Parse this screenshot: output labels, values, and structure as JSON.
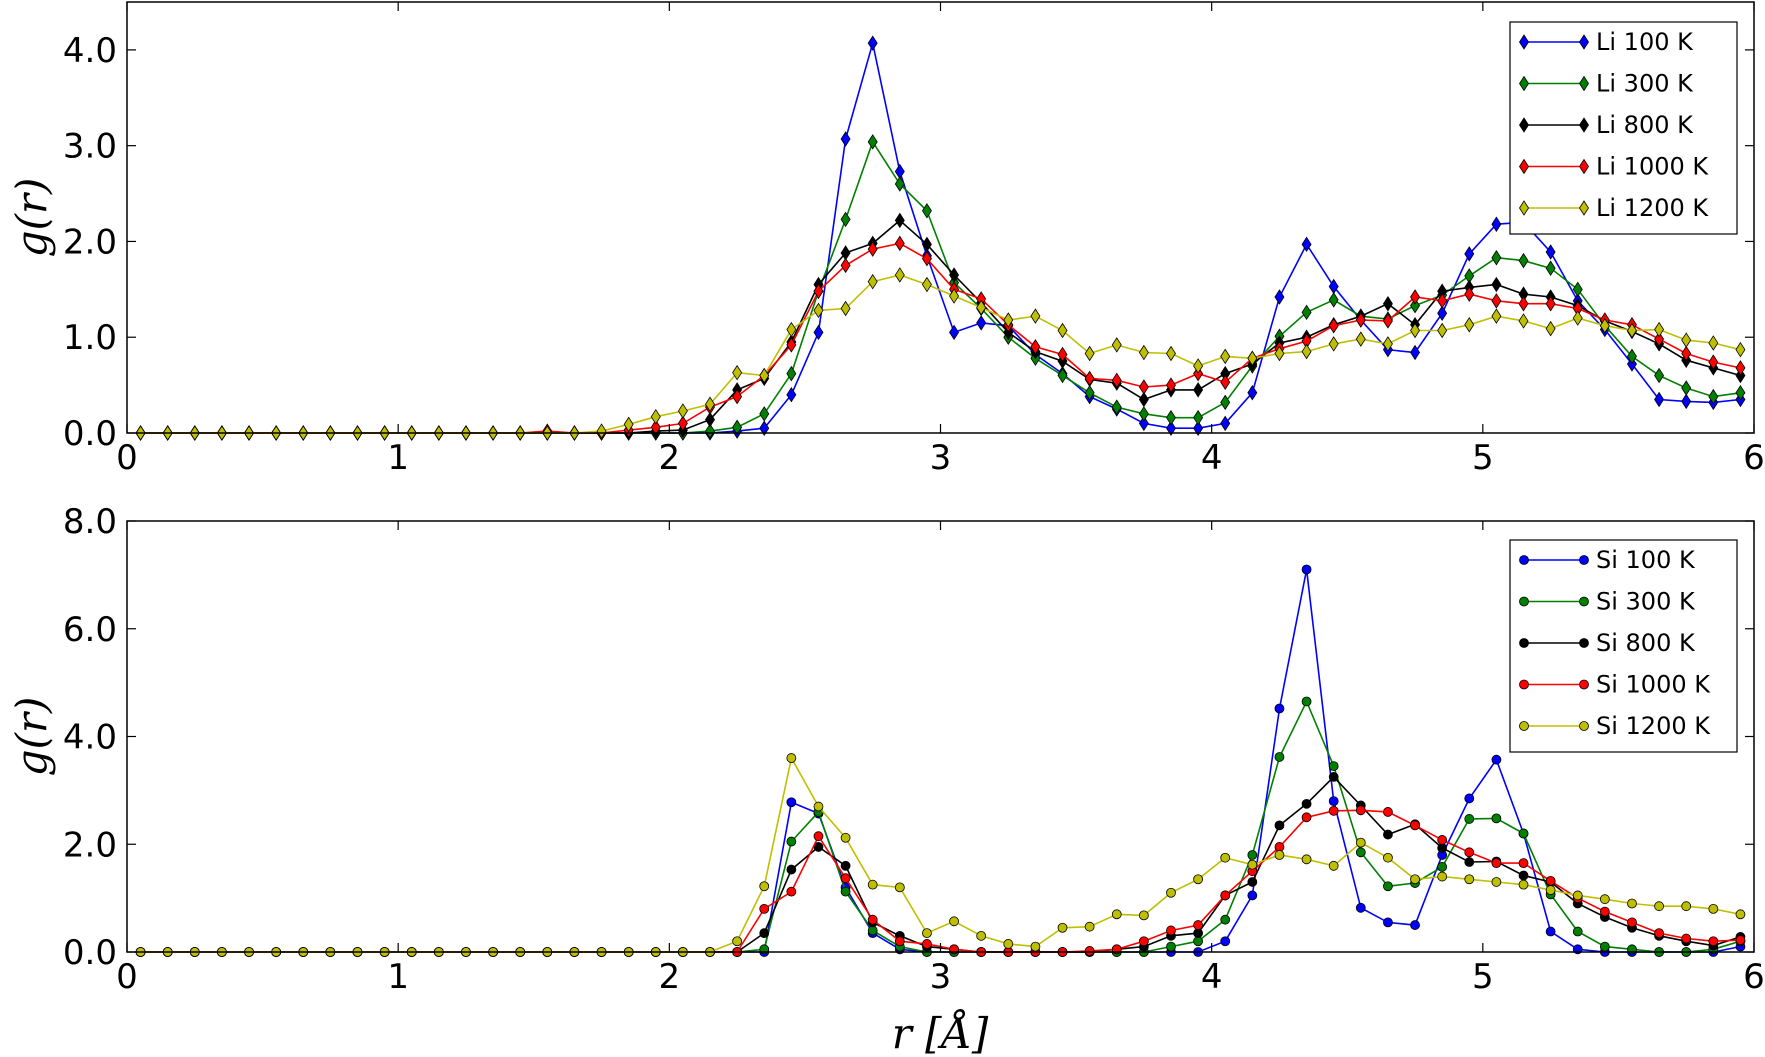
{
  "chart_data": [
    {
      "type": "line",
      "title": "",
      "xlabel": "r [Å]",
      "ylabel": "g(r)",
      "xlim": [
        0,
        6
      ],
      "ylim": [
        0,
        4.5
      ],
      "xticks": [
        "0",
        "1",
        "2",
        "3",
        "4",
        "5",
        "6"
      ],
      "yticks": [
        "0.0",
        "1.0",
        "2.0",
        "3.0",
        "4.0"
      ],
      "grid": false,
      "legend_position": "top-right",
      "marker": "diamond",
      "x": [
        0.05,
        0.15,
        0.25,
        0.35,
        0.45,
        0.55,
        0.65,
        0.75,
        0.85,
        0.95,
        1.05,
        1.15,
        1.25,
        1.35,
        1.45,
        1.55,
        1.65,
        1.75,
        1.85,
        1.95,
        2.05,
        2.15,
        2.25,
        2.35,
        2.45,
        2.55,
        2.65,
        2.75,
        2.85,
        2.95,
        3.05,
        3.15,
        3.25,
        3.35,
        3.45,
        3.55,
        3.65,
        3.75,
        3.85,
        3.95,
        4.05,
        4.15,
        4.25,
        4.35,
        4.45,
        4.55,
        4.65,
        4.75,
        4.85,
        4.95,
        5.05,
        5.15,
        5.25,
        5.35,
        5.45,
        5.55,
        5.65,
        5.75,
        5.85,
        5.95
      ],
      "series": [
        {
          "name": "Li 100 K",
          "color": "#0000ff",
          "values": [
            0,
            0,
            0,
            0,
            0,
            0,
            0,
            0,
            0,
            0,
            0,
            0,
            0,
            0,
            0,
            0,
            0,
            0,
            0,
            0,
            0,
            0,
            0.02,
            0.05,
            0.4,
            1.05,
            3.07,
            4.07,
            2.73,
            1.85,
            1.05,
            1.15,
            1.12,
            0.82,
            0.62,
            0.38,
            0.25,
            0.1,
            0.05,
            0.05,
            0.1,
            0.42,
            1.42,
            1.97,
            1.53,
            1.18,
            0.87,
            0.84,
            1.25,
            1.87,
            2.18,
            2.2,
            1.89,
            1.38,
            1.08,
            0.72,
            0.35,
            0.33,
            0.32,
            0.35
          ]
        },
        {
          "name": "Li 300 K",
          "color": "#008000",
          "values": [
            0,
            0,
            0,
            0,
            0,
            0,
            0,
            0,
            0,
            0,
            0,
            0,
            0,
            0,
            0,
            0,
            0,
            0,
            0,
            0,
            0,
            0.02,
            0.06,
            0.2,
            0.62,
            1.48,
            2.23,
            3.04,
            2.6,
            2.32,
            1.57,
            1.3,
            1,
            0.78,
            0.6,
            0.42,
            0.27,
            0.2,
            0.16,
            0.16,
            0.32,
            0.7,
            1.01,
            1.26,
            1.39,
            1.22,
            1.19,
            1.33,
            1.44,
            1.64,
            1.83,
            1.8,
            1.72,
            1.5,
            1.12,
            0.8,
            0.6,
            0.47,
            0.38,
            0.42
          ]
        },
        {
          "name": "Li 800 K",
          "color": "#000000",
          "values": [
            0,
            0,
            0,
            0,
            0,
            0,
            0,
            0,
            0,
            0,
            0,
            0,
            0,
            0,
            0,
            0,
            0,
            0,
            0,
            0.02,
            0.03,
            0.14,
            0.45,
            0.57,
            0.95,
            1.55,
            1.88,
            1.98,
            2.22,
            1.97,
            1.65,
            1.36,
            1.05,
            0.85,
            0.75,
            0.56,
            0.52,
            0.35,
            0.45,
            0.45,
            0.62,
            0.72,
            0.94,
            1,
            1.13,
            1.22,
            1.35,
            1.13,
            1.48,
            1.52,
            1.55,
            1.45,
            1.42,
            1.33,
            1.17,
            1.06,
            0.93,
            0.76,
            0.68,
            0.6
          ]
        },
        {
          "name": "Li 1000 K",
          "color": "#ff0000",
          "values": [
            0,
            0,
            0,
            0,
            0,
            0,
            0,
            0,
            0,
            0,
            0,
            0,
            0,
            0,
            0,
            0.02,
            0,
            0,
            0.03,
            0.06,
            0.1,
            0.27,
            0.38,
            0.6,
            0.92,
            1.48,
            1.75,
            1.92,
            1.98,
            1.82,
            1.5,
            1.4,
            1.13,
            0.9,
            0.82,
            0.57,
            0.55,
            0.48,
            0.5,
            0.62,
            0.53,
            0.78,
            0.88,
            0.96,
            1.12,
            1.18,
            1.17,
            1.42,
            1.38,
            1.45,
            1.38,
            1.35,
            1.35,
            1.3,
            1.18,
            1.13,
            0.98,
            0.83,
            0.74,
            0.68
          ]
        },
        {
          "name": "Li 1200 K",
          "color": "#bfbf00",
          "values": [
            0,
            0,
            0,
            0,
            0,
            0,
            0,
            0,
            0,
            0,
            0,
            0,
            0,
            0,
            0,
            0,
            0,
            0.02,
            0.09,
            0.17,
            0.23,
            0.3,
            0.63,
            0.6,
            1.08,
            1.28,
            1.3,
            1.58,
            1.65,
            1.55,
            1.43,
            1.31,
            1.18,
            1.22,
            1.07,
            0.83,
            0.92,
            0.84,
            0.83,
            0.7,
            0.8,
            0.78,
            0.83,
            0.85,
            0.93,
            0.98,
            0.93,
            1.07,
            1.07,
            1.13,
            1.22,
            1.17,
            1.09,
            1.2,
            1.12,
            1.07,
            1.08,
            0.97,
            0.94,
            0.87
          ]
        }
      ]
    },
    {
      "type": "line",
      "title": "",
      "xlabel": "r [Å]",
      "ylabel": "g(r)",
      "xlim": [
        0,
        6
      ],
      "ylim": [
        0,
        8
      ],
      "xticks": [
        "0",
        "1",
        "2",
        "3",
        "4",
        "5",
        "6"
      ],
      "yticks": [
        "0.0",
        "2.0",
        "4.0",
        "6.0",
        "8.0"
      ],
      "grid": false,
      "legend_position": "top-right",
      "marker": "circle",
      "x": [
        0.05,
        0.15,
        0.25,
        0.35,
        0.45,
        0.55,
        0.65,
        0.75,
        0.85,
        0.95,
        1.05,
        1.15,
        1.25,
        1.35,
        1.45,
        1.55,
        1.65,
        1.75,
        1.85,
        1.95,
        2.05,
        2.15,
        2.25,
        2.35,
        2.45,
        2.55,
        2.65,
        2.75,
        2.85,
        2.95,
        3.05,
        3.15,
        3.25,
        3.35,
        3.45,
        3.55,
        3.65,
        3.75,
        3.85,
        3.95,
        4.05,
        4.15,
        4.25,
        4.35,
        4.45,
        4.55,
        4.65,
        4.75,
        4.85,
        4.95,
        5.05,
        5.15,
        5.25,
        5.35,
        5.45,
        5.55,
        5.65,
        5.75,
        5.85,
        5.95
      ],
      "series": [
        {
          "name": "Si 100 K",
          "color": "#0000ff",
          "values": [
            0,
            0,
            0,
            0,
            0,
            0,
            0,
            0,
            0,
            0,
            0,
            0,
            0,
            0,
            0,
            0,
            0,
            0,
            0,
            0,
            0,
            0,
            0,
            0,
            2.78,
            2.57,
            1.2,
            0.35,
            0.05,
            0,
            0,
            0,
            0,
            0,
            0,
            0,
            0,
            0,
            0,
            0,
            0.2,
            1.05,
            4.52,
            7.1,
            2.8,
            0.82,
            0.55,
            0.5,
            1.8,
            2.85,
            3.57,
            2.2,
            0.38,
            0.05,
            0,
            0,
            0,
            0,
            0,
            0.1
          ]
        },
        {
          "name": "Si 300 K",
          "color": "#008000",
          "values": [
            0,
            0,
            0,
            0,
            0,
            0,
            0,
            0,
            0,
            0,
            0,
            0,
            0,
            0,
            0,
            0,
            0,
            0,
            0,
            0,
            0,
            0,
            0,
            0.05,
            2.05,
            2.6,
            1.12,
            0.4,
            0.1,
            0,
            0,
            0,
            0,
            0,
            0,
            0,
            0,
            0,
            0.1,
            0.2,
            0.6,
            1.8,
            3.62,
            4.65,
            3.45,
            1.85,
            1.22,
            1.28,
            1.58,
            2.47,
            2.48,
            2.2,
            1.07,
            0.38,
            0.1,
            0.05,
            0,
            0,
            0.05,
            0.2
          ]
        },
        {
          "name": "Si 800 K",
          "color": "#000000",
          "values": [
            0,
            0,
            0,
            0,
            0,
            0,
            0,
            0,
            0,
            0,
            0,
            0,
            0,
            0,
            0,
            0,
            0,
            0,
            0,
            0,
            0,
            0,
            0,
            0.35,
            1.53,
            1.95,
            1.6,
            0.55,
            0.3,
            0.1,
            0.05,
            0,
            0,
            0,
            0,
            0,
            0.05,
            0.1,
            0.3,
            0.35,
            1.05,
            1.3,
            2.35,
            2.75,
            3.25,
            2.72,
            2.18,
            2.37,
            1.93,
            1.67,
            1.68,
            1.42,
            1.3,
            0.9,
            0.65,
            0.45,
            0.3,
            0.2,
            0.12,
            0.28
          ]
        },
        {
          "name": "Si 1000 K",
          "color": "#ff0000",
          "values": [
            0,
            0,
            0,
            0,
            0,
            0,
            0,
            0,
            0,
            0,
            0,
            0,
            0,
            0,
            0,
            0,
            0,
            0,
            0,
            0,
            0,
            0,
            0,
            0.8,
            1.12,
            2.15,
            1.37,
            0.6,
            0.2,
            0.15,
            0.05,
            0,
            0,
            0,
            0,
            0.02,
            0.05,
            0.2,
            0.4,
            0.5,
            1.05,
            1.5,
            1.95,
            2.5,
            2.62,
            2.63,
            2.6,
            2.35,
            2.08,
            1.85,
            1.65,
            1.65,
            1.32,
            1,
            0.75,
            0.55,
            0.35,
            0.25,
            0.2,
            0.22
          ]
        },
        {
          "name": "Si 1200 K",
          "color": "#bfbf00",
          "values": [
            0,
            0,
            0,
            0,
            0,
            0,
            0,
            0,
            0,
            0,
            0,
            0,
            0,
            0,
            0,
            0,
            0,
            0,
            0,
            0,
            0,
            0,
            0.2,
            1.22,
            3.6,
            2.7,
            2.12,
            1.25,
            1.2,
            0.35,
            0.57,
            0.3,
            0.15,
            0.1,
            0.45,
            0.47,
            0.7,
            0.68,
            1.1,
            1.35,
            1.75,
            1.62,
            1.8,
            1.72,
            1.6,
            2.03,
            1.75,
            1.35,
            1.4,
            1.35,
            1.3,
            1.25,
            1.15,
            1.05,
            0.98,
            0.9,
            0.85,
            0.85,
            0.8,
            0.7
          ]
        }
      ]
    }
  ]
}
